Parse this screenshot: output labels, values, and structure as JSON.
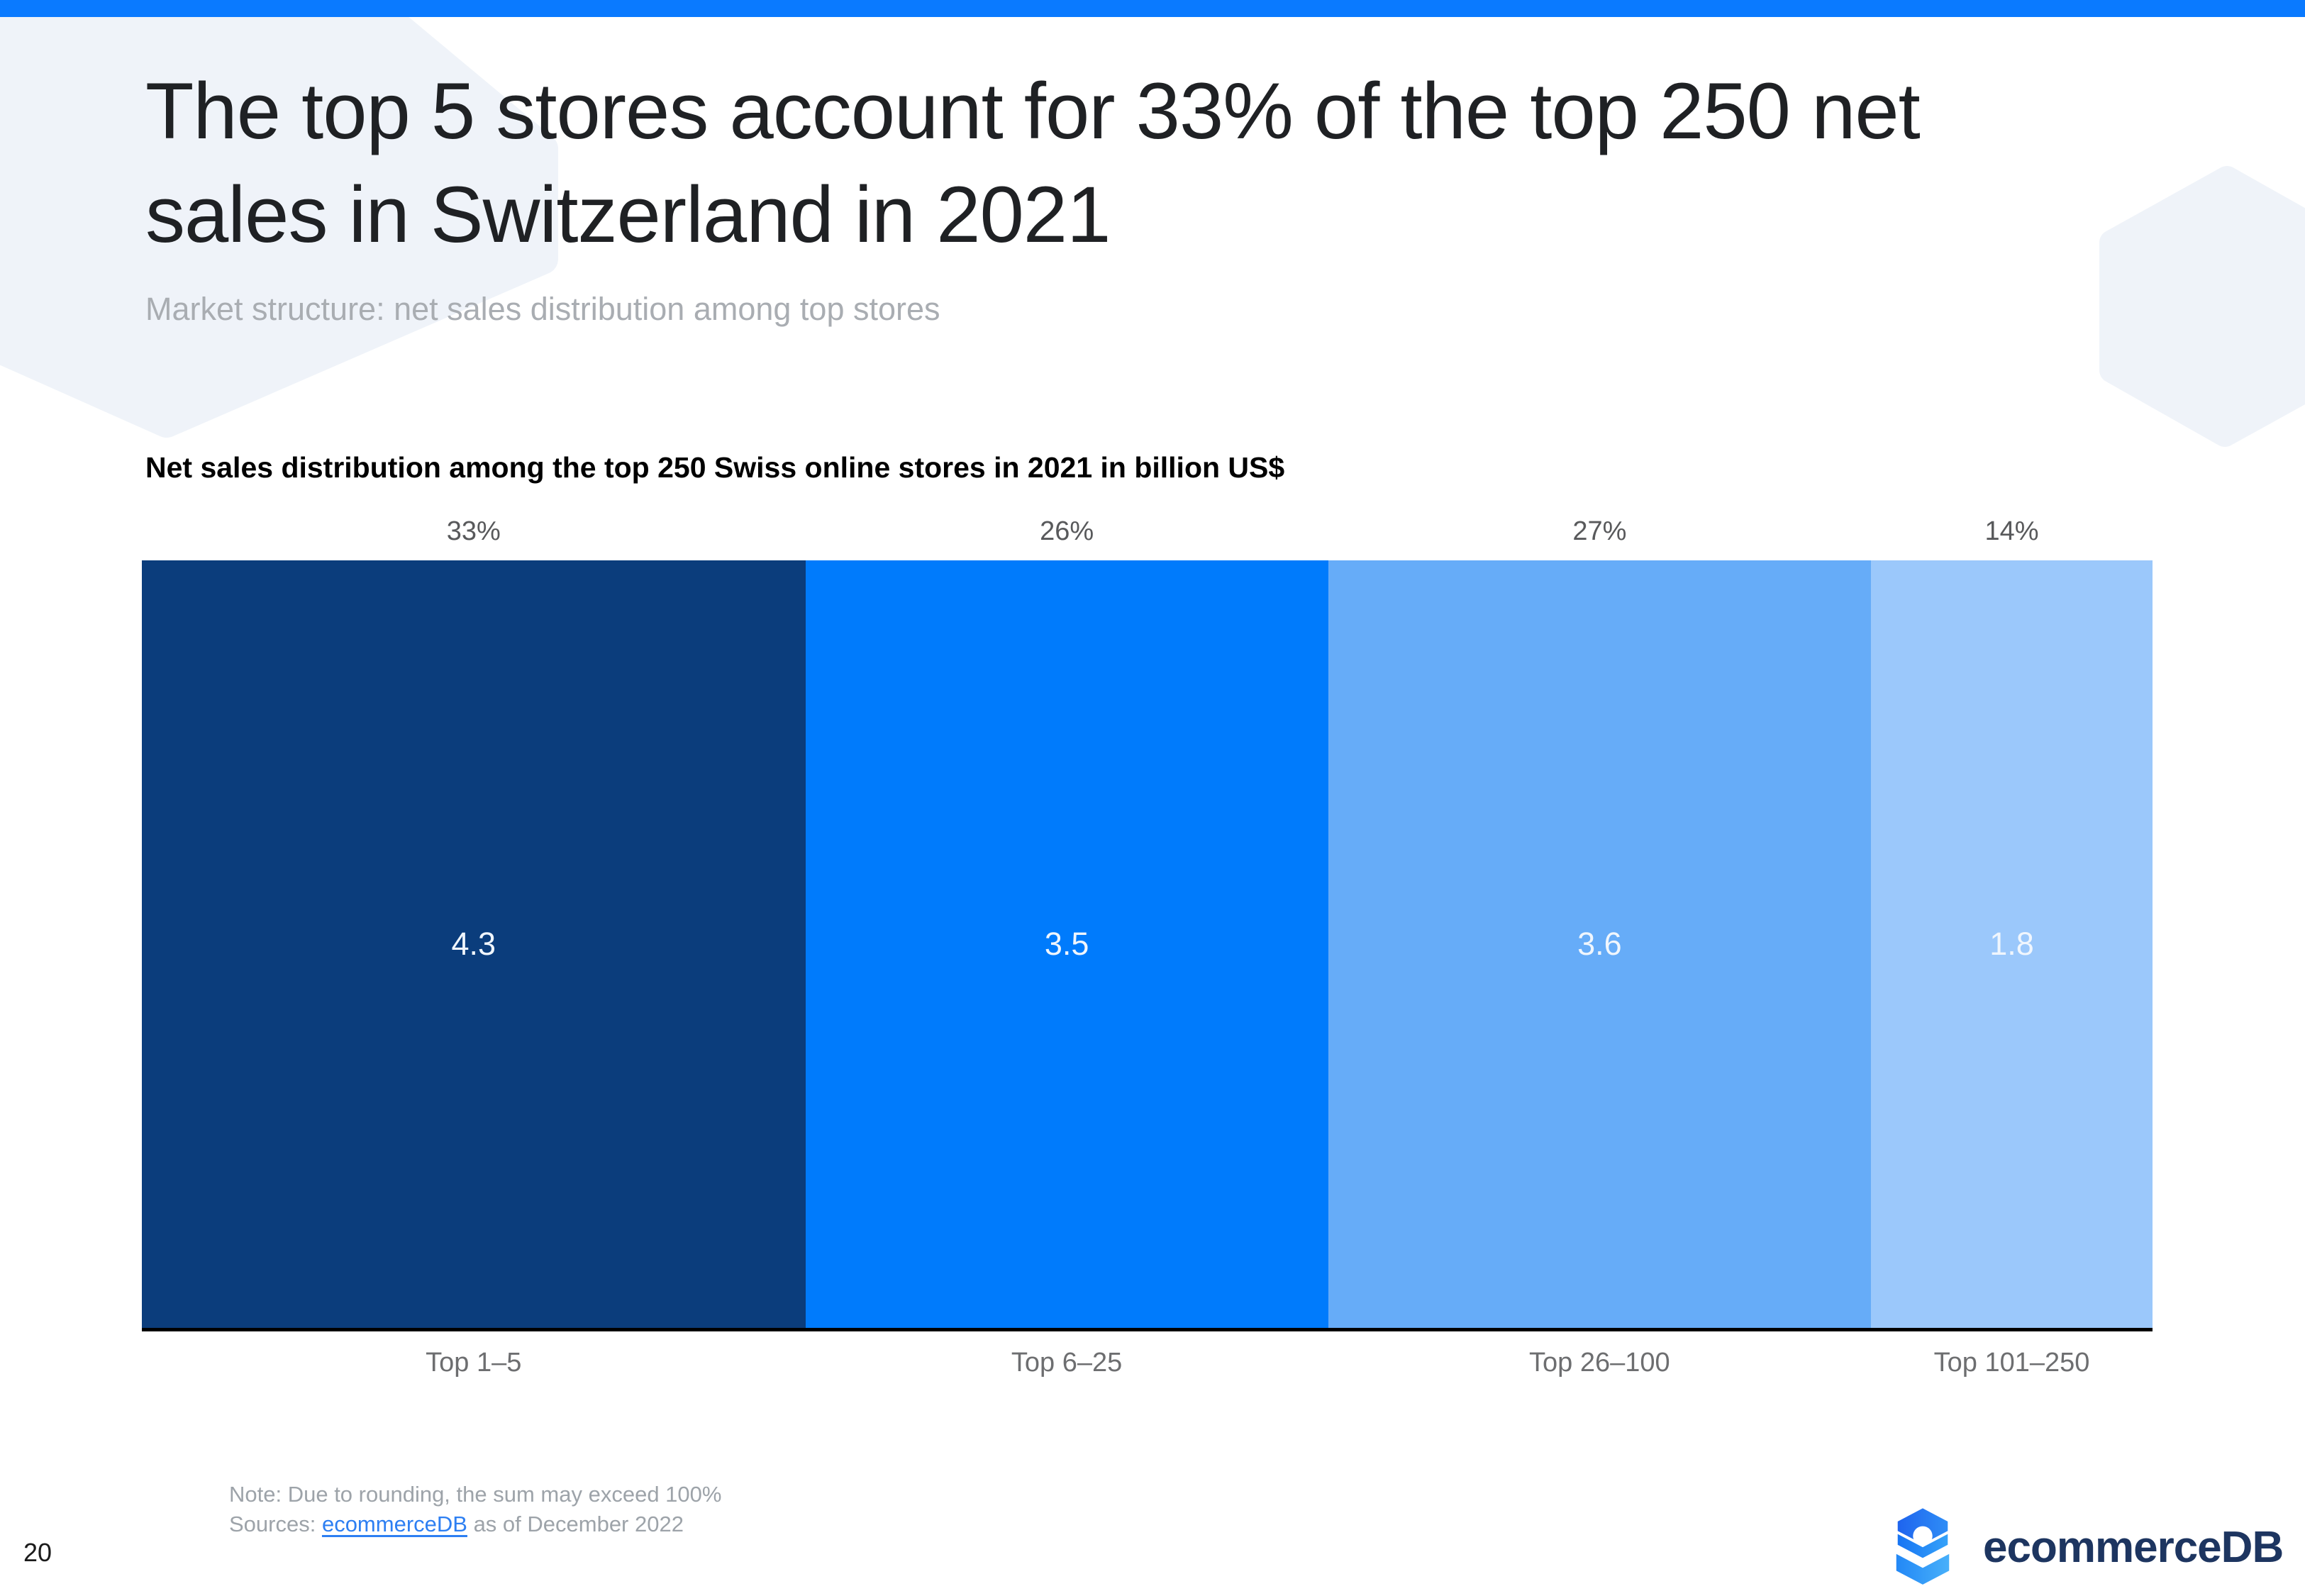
{
  "page": {
    "number": "20"
  },
  "theme": {
    "top_bar_color": "#0a7aff",
    "hexagon_color": "#eff3f9",
    "axis_color": "#000000",
    "logo_navy": "#1d3560"
  },
  "header": {
    "title_line1": "The top 5 stores account for 33% of the top 250 net",
    "title_line2": "sales in Switzerland in 2021",
    "subtitle": "Market structure: net sales distribution among top stores"
  },
  "chart_data": {
    "type": "bar",
    "variant": "horizontal-100pct-stacked",
    "title": "Net sales distribution among the top 250 Swiss online stores in 2021 in billion US$",
    "unit": "billion US$",
    "categories": [
      "Top 1–5",
      "Top 6–25",
      "Top 26–100",
      "Top 101–250"
    ],
    "share_pct": [
      33,
      26,
      27,
      14
    ],
    "share_pct_labels": [
      "33%",
      "26%",
      "27%",
      "14%"
    ],
    "values_billion_usd": [
      4.3,
      3.5,
      3.6,
      1.8
    ],
    "value_labels": [
      "4.3",
      "3.5",
      "3.6",
      "1.8"
    ],
    "segment_colors": [
      "#0b3d7c",
      "#007bfc",
      "#66acf8",
      "#9bc8fb"
    ],
    "legend_position": "none",
    "grid": false
  },
  "footer": {
    "note": "Note: Due to rounding, the sum may exceed 100%",
    "sources_prefix": "Sources: ",
    "sources_link": "ecommerceDB",
    "sources_suffix": " as of December 2022",
    "logo_text": "ecommerceDB"
  }
}
